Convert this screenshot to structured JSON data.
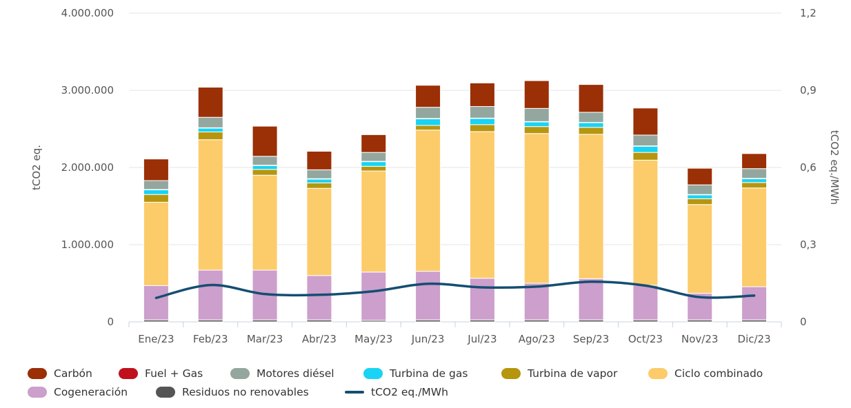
{
  "chart_data": {
    "type": "bar",
    "stacked": true,
    "categories": [
      "Ene/23",
      "Feb/23",
      "Mar/23",
      "Abr/23",
      "May/23",
      "Jun/23",
      "Jul/23",
      "Ago/23",
      "Sep/23",
      "Oct/23",
      "Nov/23",
      "Dic/23"
    ],
    "ylabel": "tCO2 eq.",
    "y2label": "tCO2 eq./MWh",
    "ylim": [
      0,
      4000000
    ],
    "y2lim": [
      0,
      1.2
    ],
    "yticks": [
      "0",
      "1.000.000",
      "2.000.000",
      "3.000.000",
      "4.000.000"
    ],
    "y2ticks": [
      "0",
      "0,3",
      "0,6",
      "0,9",
      "1,2"
    ],
    "grid": true,
    "legend_position": "bottom",
    "series": [
      {
        "name": "Residuos no renovables",
        "color": "#555555",
        "values": [
          25000,
          25000,
          25000,
          25000,
          20000,
          25000,
          25000,
          25000,
          25000,
          25000,
          25000,
          25000
        ]
      },
      {
        "name": "Cogeneración",
        "color": "#cc9fcc",
        "values": [
          445000,
          645000,
          645000,
          575000,
          625000,
          630000,
          540000,
          475000,
          535000,
          450000,
          345000,
          430000
        ]
      },
      {
        "name": "Ciclo combinado",
        "color": "#fccb6a",
        "values": [
          1080000,
          1690000,
          1230000,
          1130000,
          1310000,
          1830000,
          1900000,
          1940000,
          1870000,
          1620000,
          1150000,
          1280000
        ]
      },
      {
        "name": "Turbina de vapor",
        "color": "#b6960f",
        "values": [
          100000,
          100000,
          75000,
          70000,
          60000,
          60000,
          90000,
          90000,
          90000,
          100000,
          75000,
          70000
        ]
      },
      {
        "name": "Turbina de gas",
        "color": "#19d3f4",
        "values": [
          60000,
          50000,
          50000,
          50000,
          60000,
          85000,
          80000,
          60000,
          60000,
          80000,
          50000,
          50000
        ]
      },
      {
        "name": "Fuel + Gas",
        "color": "#c0101d",
        "values": [
          5000,
          5000,
          5000,
          5000,
          5000,
          5000,
          5000,
          5000,
          5000,
          5000,
          5000,
          5000
        ]
      },
      {
        "name": "Motores diésel",
        "color": "#93a79f",
        "values": [
          115000,
          135000,
          115000,
          115000,
          115000,
          145000,
          150000,
          170000,
          130000,
          140000,
          125000,
          125000
        ]
      },
      {
        "name": "Carbón",
        "color": "#9b2f06",
        "values": [
          280000,
          390000,
          390000,
          240000,
          230000,
          285000,
          305000,
          360000,
          360000,
          350000,
          215000,
          195000
        ]
      },
      {
        "name": "tCO2 eq./MWh",
        "type": "line",
        "axis": "right",
        "color": "#144e72",
        "values": [
          0.093,
          0.143,
          0.108,
          0.105,
          0.119,
          0.148,
          0.134,
          0.137,
          0.156,
          0.141,
          0.096,
          0.102
        ]
      }
    ]
  },
  "legend": [
    {
      "label": "Carbón",
      "color": "#9b2f06",
      "shape": "bar"
    },
    {
      "label": "Fuel + Gas",
      "color": "#c0101d",
      "shape": "bar"
    },
    {
      "label": "Motores diésel",
      "color": "#93a79f",
      "shape": "bar"
    },
    {
      "label": "Turbina de gas",
      "color": "#19d3f4",
      "shape": "bar"
    },
    {
      "label": "Turbina de vapor",
      "color": "#b6960f",
      "shape": "bar"
    },
    {
      "label": "Ciclo combinado",
      "color": "#fccb6a",
      "shape": "bar"
    },
    {
      "label": "Cogeneración",
      "color": "#cc9fcc",
      "shape": "bar"
    },
    {
      "label": "Residuos no renovables",
      "color": "#555555",
      "shape": "bar"
    },
    {
      "label": "tCO2 eq./MWh",
      "color": "#144e72",
      "shape": "line"
    }
  ]
}
